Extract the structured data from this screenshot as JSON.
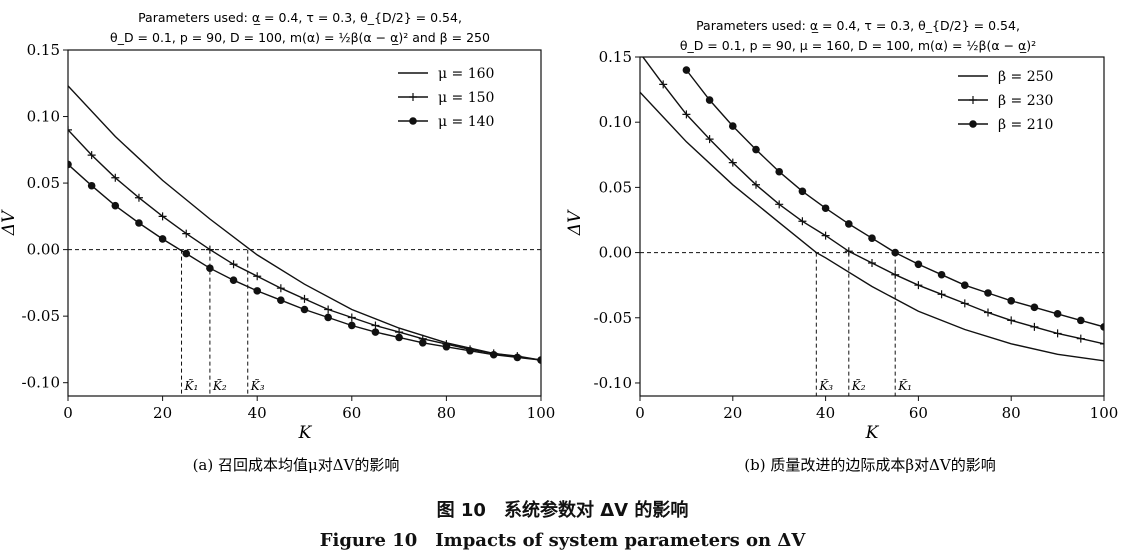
{
  "figure": {
    "caption_cn": "图 10　系统参数对 ΔV 的影响",
    "caption_en": "Figure 10　Impacts of system parameters on ΔV"
  },
  "chart_data": [
    {
      "type": "line",
      "params_line1": "Parameters used: α̲ = 0.4, τ = 0.3, θ_{D/2} = 0.54,",
      "params_line2": "θ_D = 0.1, p = 90, D = 100, m(α) = ½β(α − α̲)² and β = 250",
      "xlabel": "K",
      "ylabel": "ΔV",
      "xlim": [
        0,
        100
      ],
      "ylim": [
        -0.11,
        0.15
      ],
      "xticks": [
        "0",
        "20",
        "40",
        "60",
        "80",
        "100"
      ],
      "yticks": [
        "0.15",
        "0.10",
        "0.05",
        "0.00",
        "-0.05",
        "-0.10"
      ],
      "legend_position": "top-right",
      "caption": "(a) 召回成本均值μ对ΔV的影响",
      "zero_line": 0,
      "series": [
        {
          "name": "μ = 160",
          "marker": "none",
          "x": [
            0,
            10,
            20,
            30,
            38.5,
            40,
            50,
            60,
            70,
            80,
            90,
            100
          ],
          "y": [
            0.123,
            0.085,
            0.052,
            0.023,
            0.0,
            -0.004,
            -0.026,
            -0.045,
            -0.059,
            -0.07,
            -0.078,
            -0.083
          ]
        },
        {
          "name": "μ = 150",
          "marker": "plus",
          "x": [
            0,
            5,
            10,
            15,
            20,
            25,
            30,
            35,
            40,
            45,
            50,
            55,
            60,
            65,
            70,
            75,
            80,
            85,
            90,
            95,
            100
          ],
          "y": [
            0.09,
            0.071,
            0.054,
            0.039,
            0.025,
            0.012,
            0.0,
            -0.011,
            -0.02,
            -0.029,
            -0.037,
            -0.045,
            -0.051,
            -0.057,
            -0.062,
            -0.067,
            -0.071,
            -0.075,
            -0.078,
            -0.08,
            -0.083
          ]
        },
        {
          "name": "μ = 140",
          "marker": "circle",
          "x": [
            0,
            5,
            10,
            15,
            20,
            25,
            30,
            35,
            40,
            45,
            50,
            55,
            60,
            65,
            70,
            75,
            80,
            85,
            90,
            95,
            100
          ],
          "y": [
            0.064,
            0.048,
            0.033,
            0.02,
            0.008,
            -0.003,
            -0.014,
            -0.023,
            -0.031,
            -0.038,
            -0.045,
            -0.051,
            -0.057,
            -0.062,
            -0.066,
            -0.07,
            -0.073,
            -0.076,
            -0.079,
            -0.081,
            -0.083
          ]
        }
      ],
      "vlines": [
        {
          "x": 24,
          "label": "K̃₁"
        },
        {
          "x": 30,
          "label": "K̃₂"
        },
        {
          "x": 38,
          "label": "K̃₃"
        }
      ]
    },
    {
      "type": "line",
      "params_line1": "Parameters used: α̲ = 0.4, τ = 0.3, θ_{D/2} = 0.54,",
      "params_line2": "θ_D = 0.1, p = 90, μ = 160, D = 100, m(α) = ½β(α − α̲)²",
      "xlabel": "K",
      "ylabel": "ΔV",
      "xlim": [
        0,
        100
      ],
      "ylim": [
        -0.11,
        0.15
      ],
      "xticks": [
        "0",
        "20",
        "40",
        "60",
        "80",
        "100"
      ],
      "yticks": [
        "0.15",
        "0.10",
        "0.05",
        "0.00",
        "-0.05",
        "-0.10"
      ],
      "legend_position": "top-right",
      "caption": "(b) 质量改进的边际成本β对ΔV的影响",
      "zero_line": 0,
      "series": [
        {
          "name": "β = 250",
          "marker": "none",
          "x": [
            0,
            10,
            20,
            30,
            38,
            40,
            50,
            60,
            70,
            80,
            90,
            100
          ],
          "y": [
            0.123,
            0.085,
            0.052,
            0.023,
            0.0,
            -0.004,
            -0.026,
            -0.045,
            -0.059,
            -0.07,
            -0.078,
            -0.083
          ]
        },
        {
          "name": "β = 230",
          "marker": "plus",
          "x": [
            0,
            5,
            10,
            15,
            20,
            25,
            30,
            35,
            40,
            45,
            50,
            55,
            60,
            65,
            70,
            75,
            80,
            85,
            90,
            95,
            100
          ],
          "y": [
            0.153,
            0.129,
            0.106,
            0.087,
            0.069,
            0.052,
            0.037,
            0.024,
            0.013,
            0.001,
            -0.008,
            -0.017,
            -0.025,
            -0.032,
            -0.039,
            -0.046,
            -0.052,
            -0.057,
            -0.062,
            -0.066,
            -0.07
          ]
        },
        {
          "name": "β = 210",
          "marker": "circle",
          "x": [
            10,
            15,
            20,
            25,
            30,
            35,
            40,
            45,
            50,
            55,
            60,
            65,
            70,
            75,
            80,
            85,
            90,
            95,
            100
          ],
          "y": [
            0.14,
            0.117,
            0.097,
            0.079,
            0.062,
            0.047,
            0.034,
            0.022,
            0.011,
            0.0,
            -0.009,
            -0.017,
            -0.025,
            -0.031,
            -0.037,
            -0.042,
            -0.047,
            -0.052,
            -0.057
          ]
        }
      ],
      "vlines": [
        {
          "x": 38,
          "label": "K̃₃"
        },
        {
          "x": 45,
          "label": "K̃₂"
        },
        {
          "x": 55,
          "label": "K̃₁"
        }
      ]
    }
  ]
}
